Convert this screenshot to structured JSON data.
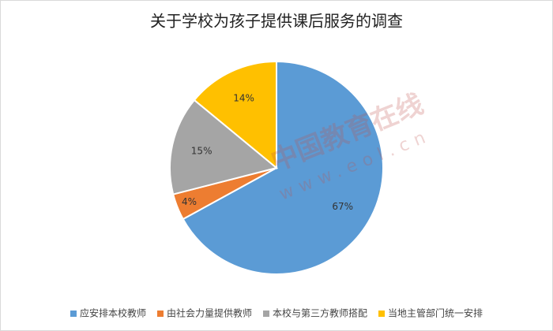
{
  "chart_data": {
    "type": "pie",
    "title": "关于学校为孩子提供课后服务的调查",
    "categories": [
      "应安排本校教师",
      "由社会力量提供教师",
      "本校与第三方教师搭配",
      "当地主管部门统一安排"
    ],
    "values": [
      67,
      4,
      15,
      14
    ],
    "value_labels": [
      "67%",
      "4%",
      "15%",
      "14%"
    ],
    "colors": [
      "#5b9bd5",
      "#ed7d31",
      "#a5a5a5",
      "#ffc000"
    ],
    "legend": "bottom",
    "watermark": "中国教育在线",
    "watermark_url": "www.eol.cn"
  }
}
